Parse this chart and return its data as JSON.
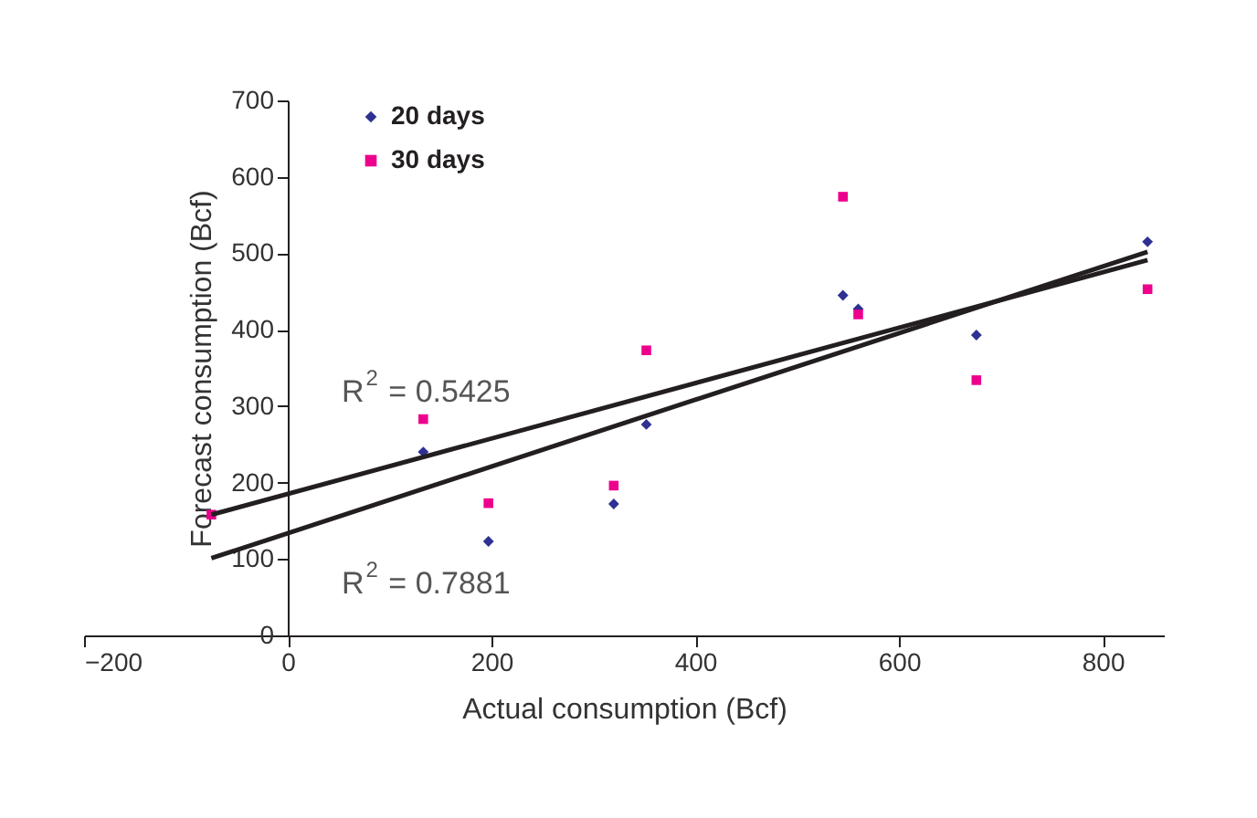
{
  "chart_data": {
    "type": "scatter",
    "xlabel": "Actual consumption (Bcf)",
    "ylabel": "Forecast consumption (Bcf)",
    "xlim": [
      -200,
      860
    ],
    "xticks": [
      -200,
      0,
      200,
      400,
      600,
      800
    ],
    "ylim": [
      0,
      700
    ],
    "yticks": [
      0,
      100,
      200,
      300,
      400,
      500,
      600,
      700
    ],
    "grid": false,
    "legend": "top left",
    "series": [
      {
        "name": "20 days",
        "color": "#2e3192",
        "marker": "diamond",
        "x": [
          133,
          197,
          320,
          352,
          545,
          560,
          676,
          844
        ],
        "values": [
          240,
          123,
          172,
          276,
          445,
          427,
          393,
          515
        ]
      },
      {
        "name": "30 days",
        "color": "#ec008c",
        "marker": "square",
        "x": [
          -75,
          133,
          197,
          320,
          352,
          545,
          560,
          676,
          844
        ],
        "values": [
          158,
          283,
          173,
          196,
          373,
          574,
          420,
          334,
          453
        ]
      },
      {
        "type": "line",
        "color": "#231f20",
        "x": [
          -75,
          844
        ],
        "values": [
          101,
          502
        ]
      },
      {
        "type": "line",
        "color": "#231f20",
        "x": [
          -75,
          844
        ],
        "values": [
          158,
          491
        ]
      }
    ],
    "annotations": [
      "R$^{2}$ = 0.5425",
      "R$^{2}$ = 0.7881"
    ]
  }
}
